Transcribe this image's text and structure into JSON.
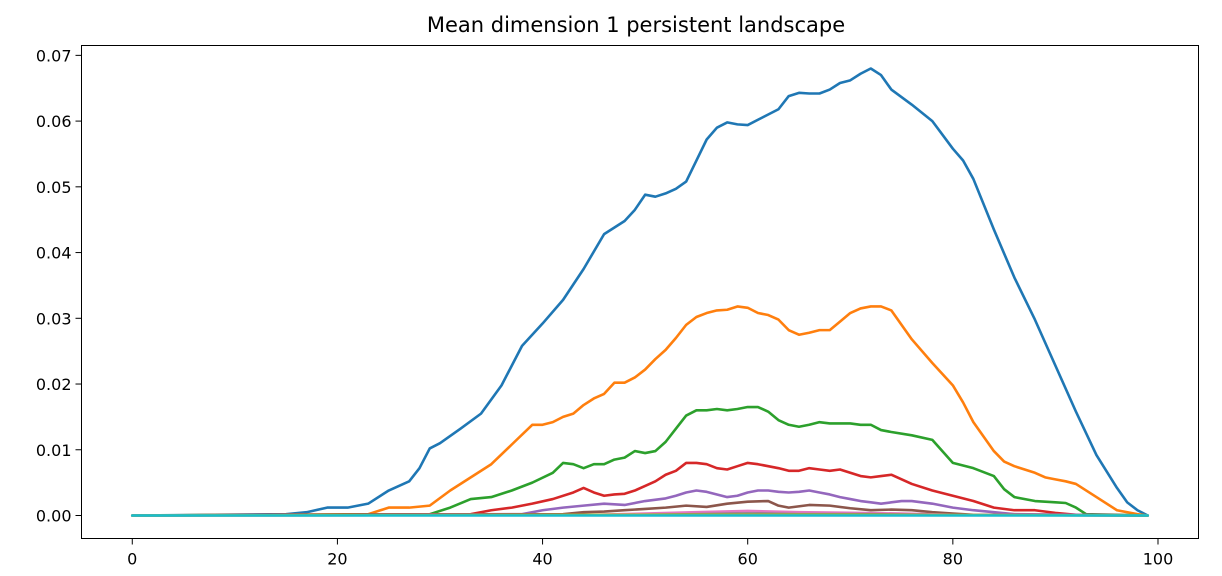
{
  "chart_data": {
    "type": "line",
    "title": "Mean dimension 1 persistent landscape",
    "xlabel": "",
    "ylabel": "",
    "xlim": [
      -4.95,
      103.95
    ],
    "ylim": [
      -0.0035,
      0.0715
    ],
    "grid": false,
    "legend": "none",
    "xticks": [
      0,
      20,
      40,
      60,
      80,
      100
    ],
    "xtick_labels": [
      "0",
      "20",
      "40",
      "60",
      "80",
      "100"
    ],
    "yticks": [
      0.0,
      0.01,
      0.02,
      0.03,
      0.04,
      0.05,
      0.06,
      0.07
    ],
    "ytick_labels": [
      "0.00",
      "0.01",
      "0.02",
      "0.03",
      "0.04",
      "0.05",
      "0.06",
      "0.07"
    ],
    "series": [
      {
        "color": "#1f77b4",
        "x": [
          0,
          15,
          17,
          19,
          21,
          23,
          25,
          27,
          28,
          29,
          30,
          32,
          34,
          36,
          37,
          38,
          40,
          42,
          44,
          46,
          48,
          49,
          50,
          51,
          52,
          53,
          54,
          55,
          56,
          57,
          58,
          59,
          60,
          61,
          62,
          63,
          64,
          65,
          66,
          67,
          68,
          69,
          70,
          71,
          72,
          73,
          74,
          76,
          78,
          80,
          81,
          82,
          84,
          86,
          88,
          90,
          92,
          94,
          96,
          97,
          98,
          99
        ],
        "y": [
          0,
          0.0002,
          0.0005,
          0.0012,
          0.0012,
          0.0018,
          0.0038,
          0.0052,
          0.0072,
          0.0102,
          0.011,
          0.0132,
          0.0155,
          0.0198,
          0.0228,
          0.0258,
          0.0292,
          0.0328,
          0.0375,
          0.0428,
          0.0448,
          0.0465,
          0.0488,
          0.0485,
          0.049,
          0.0497,
          0.0508,
          0.054,
          0.0572,
          0.059,
          0.0598,
          0.0595,
          0.0594,
          0.0602,
          0.061,
          0.0618,
          0.0638,
          0.0643,
          0.0642,
          0.0642,
          0.0648,
          0.0658,
          0.0662,
          0.0672,
          0.068,
          0.067,
          0.0648,
          0.0625,
          0.06,
          0.0558,
          0.054,
          0.0512,
          0.0435,
          0.0362,
          0.0298,
          0.0228,
          0.0158,
          0.0092,
          0.0042,
          0.002,
          0.0008,
          0.0
        ]
      },
      {
        "color": "#ff7f0e",
        "x": [
          0,
          23,
          25,
          27,
          29,
          31,
          33,
          35,
          37,
          39,
          40,
          41,
          42,
          43,
          44,
          45,
          46,
          47,
          48,
          49,
          50,
          51,
          52,
          53,
          54,
          55,
          56,
          57,
          58,
          59,
          60,
          61,
          62,
          63,
          64,
          65,
          66,
          67,
          68,
          69,
          70,
          71,
          72,
          73,
          74,
          76,
          78,
          80,
          81,
          82,
          83,
          84,
          85,
          86,
          88,
          89,
          90,
          91,
          92,
          94,
          96,
          98,
          99
        ],
        "y": [
          0,
          0.0002,
          0.0012,
          0.0012,
          0.0015,
          0.0038,
          0.0058,
          0.0078,
          0.0108,
          0.0138,
          0.0138,
          0.0142,
          0.015,
          0.0155,
          0.0168,
          0.0178,
          0.0185,
          0.0202,
          0.0202,
          0.021,
          0.0222,
          0.0238,
          0.0252,
          0.027,
          0.029,
          0.0302,
          0.0308,
          0.0312,
          0.0313,
          0.0318,
          0.0316,
          0.0308,
          0.0305,
          0.0298,
          0.0282,
          0.0275,
          0.0278,
          0.0282,
          0.0282,
          0.0295,
          0.0308,
          0.0315,
          0.0318,
          0.0318,
          0.0312,
          0.0268,
          0.0232,
          0.0198,
          0.0172,
          0.0142,
          0.012,
          0.0098,
          0.0082,
          0.0075,
          0.0065,
          0.0058,
          0.0055,
          0.0052,
          0.0048,
          0.0028,
          0.0008,
          0.0002,
          0.0
        ]
      },
      {
        "color": "#2ca02c",
        "x": [
          0,
          29,
          31,
          33,
          35,
          37,
          39,
          41,
          42,
          43,
          44,
          45,
          46,
          47,
          48,
          49,
          50,
          51,
          52,
          53,
          54,
          55,
          56,
          57,
          58,
          59,
          60,
          61,
          62,
          63,
          64,
          65,
          66,
          67,
          68,
          69,
          70,
          71,
          72,
          73,
          74,
          76,
          78,
          80,
          82,
          84,
          85,
          86,
          88,
          90,
          91,
          92,
          93,
          99
        ],
        "y": [
          0,
          0.0002,
          0.0012,
          0.0025,
          0.0028,
          0.0038,
          0.005,
          0.0065,
          0.008,
          0.0078,
          0.0072,
          0.0078,
          0.0078,
          0.0085,
          0.0088,
          0.0098,
          0.0095,
          0.0098,
          0.0112,
          0.0132,
          0.0152,
          0.016,
          0.016,
          0.0162,
          0.016,
          0.0162,
          0.0165,
          0.0165,
          0.0158,
          0.0145,
          0.0138,
          0.0135,
          0.0138,
          0.0142,
          0.014,
          0.014,
          0.014,
          0.0138,
          0.0138,
          0.013,
          0.0127,
          0.0122,
          0.0115,
          0.008,
          0.0072,
          0.006,
          0.004,
          0.0028,
          0.0022,
          0.002,
          0.0019,
          0.0012,
          0.0002,
          0.0
        ]
      },
      {
        "color": "#d62728",
        "x": [
          0,
          33,
          35,
          37,
          39,
          41,
          43,
          44,
          45,
          46,
          47,
          48,
          49,
          50,
          51,
          52,
          53,
          54,
          55,
          56,
          57,
          58,
          59,
          60,
          61,
          62,
          63,
          64,
          65,
          66,
          67,
          68,
          69,
          70,
          71,
          72,
          73,
          74,
          76,
          78,
          80,
          82,
          84,
          86,
          88,
          90,
          92,
          99
        ],
        "y": [
          0,
          0.0002,
          0.0008,
          0.0012,
          0.0018,
          0.0025,
          0.0035,
          0.0042,
          0.0035,
          0.003,
          0.0032,
          0.0033,
          0.0038,
          0.0045,
          0.0052,
          0.0062,
          0.0068,
          0.008,
          0.008,
          0.0078,
          0.0072,
          0.007,
          0.0075,
          0.008,
          0.0078,
          0.0075,
          0.0072,
          0.0068,
          0.0068,
          0.0072,
          0.007,
          0.0068,
          0.007,
          0.0065,
          0.006,
          0.0058,
          0.006,
          0.0062,
          0.0048,
          0.0038,
          0.003,
          0.0022,
          0.0012,
          0.0008,
          0.0008,
          0.0004,
          0.0001,
          0.0
        ]
      },
      {
        "color": "#9467bd",
        "x": [
          0,
          38,
          40,
          42,
          44,
          46,
          48,
          50,
          52,
          53,
          54,
          55,
          56,
          57,
          58,
          59,
          60,
          61,
          62,
          63,
          64,
          65,
          66,
          67,
          68,
          69,
          70,
          71,
          72,
          73,
          74,
          75,
          76,
          78,
          80,
          82,
          84,
          86,
          99
        ],
        "y": [
          0,
          0.0002,
          0.0008,
          0.0012,
          0.0015,
          0.0018,
          0.0016,
          0.0022,
          0.0026,
          0.003,
          0.0035,
          0.0038,
          0.0036,
          0.0032,
          0.0028,
          0.003,
          0.0035,
          0.0038,
          0.0038,
          0.0036,
          0.0035,
          0.0036,
          0.0038,
          0.0035,
          0.0032,
          0.0028,
          0.0025,
          0.0022,
          0.002,
          0.0018,
          0.002,
          0.0022,
          0.0022,
          0.0018,
          0.0012,
          0.0008,
          0.0005,
          0.0002,
          0.0
        ]
      },
      {
        "color": "#8c564b",
        "x": [
          0,
          42,
          44,
          46,
          48,
          50,
          52,
          54,
          56,
          58,
          60,
          62,
          63,
          64,
          66,
          68,
          70,
          72,
          74,
          76,
          78,
          80,
          82,
          99
        ],
        "y": [
          0,
          0.0002,
          0.0005,
          0.0006,
          0.0008,
          0.001,
          0.0012,
          0.0015,
          0.0013,
          0.0018,
          0.0021,
          0.0022,
          0.0015,
          0.0012,
          0.0016,
          0.0015,
          0.0011,
          0.0008,
          0.0009,
          0.0008,
          0.0005,
          0.0003,
          0.0001,
          0.0
        ]
      },
      {
        "color": "#e377c2",
        "x": [
          0,
          45,
          50,
          55,
          60,
          65,
          70,
          75,
          80,
          99
        ],
        "y": [
          0,
          0.0001,
          0.0003,
          0.0005,
          0.0007,
          0.0005,
          0.0004,
          0.0003,
          0.0001,
          0.0
        ]
      },
      {
        "color": "#7f7f7f",
        "x": [
          0,
          48,
          55,
          60,
          65,
          72,
          78,
          99
        ],
        "y": [
          0,
          0.0001,
          0.0002,
          0.0003,
          0.0002,
          0.0002,
          0.0001,
          0.0
        ]
      },
      {
        "color": "#bcbd22",
        "x": [
          0,
          50,
          60,
          70,
          99
        ],
        "y": [
          0,
          0.0001,
          0.0001,
          0.0001,
          0.0
        ]
      },
      {
        "color": "#17becf",
        "x": [
          0,
          99
        ],
        "y": [
          0,
          0
        ]
      }
    ]
  }
}
